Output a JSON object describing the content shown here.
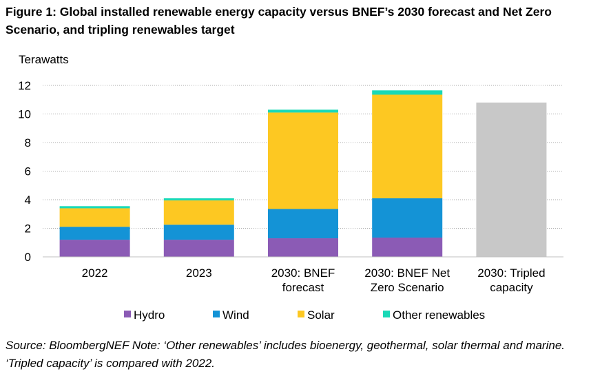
{
  "figure": {
    "title": "Figure 1: Global installed renewable energy capacity versus BNEF’s 2030 forecast and Net Zero Scenario, and tripling renewables target",
    "source_note": "Source: BloombergNEF Note: ‘Other renewables’ includes bioenergy, geothermal, solar thermal and marine. ‘Tripled capacity’ is compared with 2022."
  },
  "chart_data": {
    "type": "bar",
    "stacked": true,
    "ylabel": "Terawatts",
    "xlabel": "",
    "ylim": [
      0,
      12
    ],
    "yticks": [
      "0",
      "2",
      "4",
      "6",
      "8",
      "10",
      "12"
    ],
    "grid": "horizontal dotted",
    "legend_position": "bottom",
    "categories": [
      [
        "2022"
      ],
      [
        "2023"
      ],
      [
        "2030: BNEF",
        "forecast"
      ],
      [
        "2030: BNEF Net",
        "Zero Scenario"
      ],
      [
        "2030: Tripled",
        "capacity"
      ]
    ],
    "series": [
      {
        "name": "Hydro",
        "color": "#8b5bb5",
        "values": [
          1.2,
          1.2,
          1.3,
          1.35,
          null
        ]
      },
      {
        "name": "Wind",
        "color": "#1493d6",
        "values": [
          0.9,
          1.05,
          2.05,
          2.75,
          null
        ]
      },
      {
        "name": "Solar",
        "color": "#fdc822",
        "values": [
          1.3,
          1.7,
          6.75,
          7.25,
          null
        ]
      },
      {
        "name": "Other renewables",
        "color": "#19d9b7",
        "values": [
          0.15,
          0.15,
          0.2,
          0.3,
          null
        ]
      }
    ],
    "target": {
      "color": "#c8c8c8",
      "values": [
        null,
        null,
        null,
        null,
        10.8
      ]
    }
  }
}
